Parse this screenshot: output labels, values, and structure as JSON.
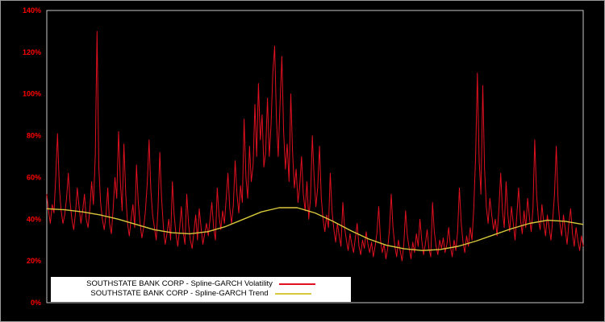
{
  "chart_data": {
    "type": "line",
    "title": "",
    "xlabel": "",
    "ylabel": "",
    "ylim": [
      0,
      140
    ],
    "yticks": [
      "0%",
      "20%",
      "40%",
      "60%",
      "80%",
      "100%",
      "120%",
      "140%"
    ],
    "ytick_values": [
      0,
      20,
      40,
      60,
      80,
      100,
      120,
      140
    ],
    "grid": false,
    "legend_position": "bottom-left",
    "colors": {
      "background": "#000000",
      "frame": "#c8c8c8",
      "tick_labels": "#ff0000",
      "legend_background": "#ffffff",
      "legend_text": "#000000"
    },
    "series": [
      {
        "name": "SOUTHSTATE BANK CORP - Spline-GARCH Volatility",
        "color": "#e01020",
        "values": [
          52,
          44,
          38,
          47,
          43,
          60,
          81,
          55,
          44,
          38,
          42,
          50,
          62,
          48,
          40,
          35,
          43,
          55,
          46,
          38,
          44,
          52,
          40,
          36,
          45,
          58,
          47,
          70,
          130,
          65,
          48,
          40,
          35,
          42,
          55,
          38,
          33,
          45,
          60,
          50,
          82,
          58,
          44,
          76,
          52,
          38,
          32,
          40,
          47,
          36,
          66,
          48,
          38,
          31,
          36,
          44,
          57,
          78,
          54,
          42,
          36,
          30,
          45,
          72,
          50,
          36,
          28,
          33,
          40,
          30,
          58,
          42,
          33,
          27,
          35,
          46,
          34,
          28,
          52,
          38,
          30,
          26,
          34,
          42,
          30,
          45,
          36,
          28,
          33,
          38,
          32,
          40,
          48,
          36,
          30,
          55,
          42,
          35,
          44,
          38,
          50,
          62,
          45,
          38,
          47,
          68,
          52,
          43,
          56,
          48,
          88,
          60,
          50,
          75,
          58,
          66,
          95,
          70,
          105,
          78,
          90,
          65,
          72,
          98,
          70,
          85,
          110,
          123,
          88,
          70,
          95,
          118,
          82,
          64,
          76,
          58,
          100,
          72,
          55,
          64,
          48,
          56,
          70,
          52,
          44,
          58,
          40,
          50,
          80,
          60,
          46,
          55,
          75,
          50,
          40,
          34,
          42,
          36,
          62,
          44,
          35,
          29,
          38,
          32,
          27,
          48,
          36,
          30,
          25,
          33,
          28,
          24,
          31,
          38,
          27,
          23,
          30,
          26,
          34,
          28,
          24,
          29,
          22,
          27,
          33,
          46,
          30,
          24,
          28,
          21,
          26,
          35,
          52,
          36,
          27,
          22,
          30,
          25,
          20,
          28,
          44,
          32,
          26,
          21,
          29,
          24,
          33,
          27,
          40,
          30,
          23,
          28,
          35,
          26,
          22,
          48,
          34,
          27,
          23,
          30,
          26,
          31,
          24,
          28,
          36,
          27,
          22,
          30,
          25,
          34,
          55,
          38,
          29,
          24,
          32,
          27,
          36,
          30,
          45,
          70,
          110,
          68,
          52,
          104,
          64,
          46,
          38,
          50,
          42,
          35,
          40,
          32,
          45,
          62,
          44,
          36,
          58,
          42,
          34,
          46,
          38,
          30,
          42,
          55,
          40,
          33,
          44,
          36,
          50,
          41,
          34,
          45,
          78,
          52,
          40,
          35,
          47,
          38,
          32,
          42,
          36,
          30,
          40,
          52,
          75,
          48,
          38,
          32,
          42,
          35,
          28,
          38,
          45,
          33,
          27,
          36,
          30,
          25,
          32,
          27
        ]
      },
      {
        "name": "SOUTHSTATE BANK CORP - Spline-GARCH Trend",
        "color": "#d8c83c",
        "values": [
          45,
          44.5,
          43.5,
          42,
          40,
          37.5,
          35,
          33.5,
          33,
          34,
          36.5,
          40,
          43.5,
          45.5,
          45.5,
          43,
          39,
          34.5,
          30.5,
          27.5,
          25.8,
          25,
          25.5,
          27,
          29.5,
          32.5,
          35.5,
          38,
          39.5,
          39,
          37.5
        ]
      }
    ]
  }
}
